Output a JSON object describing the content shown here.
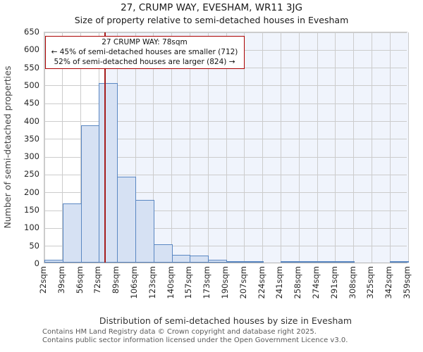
{
  "chart_data": {
    "type": "bar",
    "title": "27, CRUMP WAY, EVESHAM, WR11 3JG",
    "subtitle": "Size of property relative to semi-detached houses in Evesham",
    "xlabel": "Distribution of semi-detached houses by size in Evesham",
    "ylabel": "Number of semi-detached properties",
    "x_tick_labels": [
      "22sqm",
      "39sqm",
      "56sqm",
      "72sqm",
      "89sqm",
      "106sqm",
      "123sqm",
      "140sqm",
      "157sqm",
      "173sqm",
      "190sqm",
      "207sqm",
      "224sqm",
      "241sqm",
      "258sqm",
      "274sqm",
      "291sqm",
      "308sqm",
      "325sqm",
      "342sqm",
      "359sqm"
    ],
    "bin_edges_sqm": [
      22,
      39,
      56,
      72,
      89,
      106,
      123,
      140,
      157,
      173,
      190,
      207,
      224,
      241,
      258,
      274,
      291,
      308,
      325,
      342,
      359
    ],
    "values": [
      8,
      165,
      385,
      503,
      241,
      175,
      52,
      22,
      20,
      7,
      2,
      2,
      0,
      2,
      2,
      2,
      2,
      0,
      0,
      2
    ],
    "y_ticks": [
      0,
      50,
      100,
      150,
      200,
      250,
      300,
      350,
      400,
      450,
      500,
      550,
      600,
      650
    ],
    "ylim": [
      0,
      650
    ],
    "xlim_sqm": [
      22,
      359
    ],
    "grid": true,
    "legend": "none",
    "marker": {
      "value_sqm": 78
    },
    "annotation": {
      "line1": "27 CRUMP WAY: 78sqm",
      "line2": "← 45% of semi-detached houses are smaller (712)",
      "line3": "52% of semi-detached houses are larger (824) →"
    },
    "colors": {
      "bar_fill": "#d6e1f3",
      "bar_border": "#5a87c2",
      "shade_right_of_marker": "#f0f4fc",
      "grid": "#cccccc",
      "marker_line": "#a51d1d",
      "annotation_border": "#aa0000"
    }
  },
  "footer": {
    "line1": "Contains HM Land Registry data © Crown copyright and database right 2025.",
    "line2": "Contains public sector information licensed under the Open Government Licence v3.0."
  }
}
